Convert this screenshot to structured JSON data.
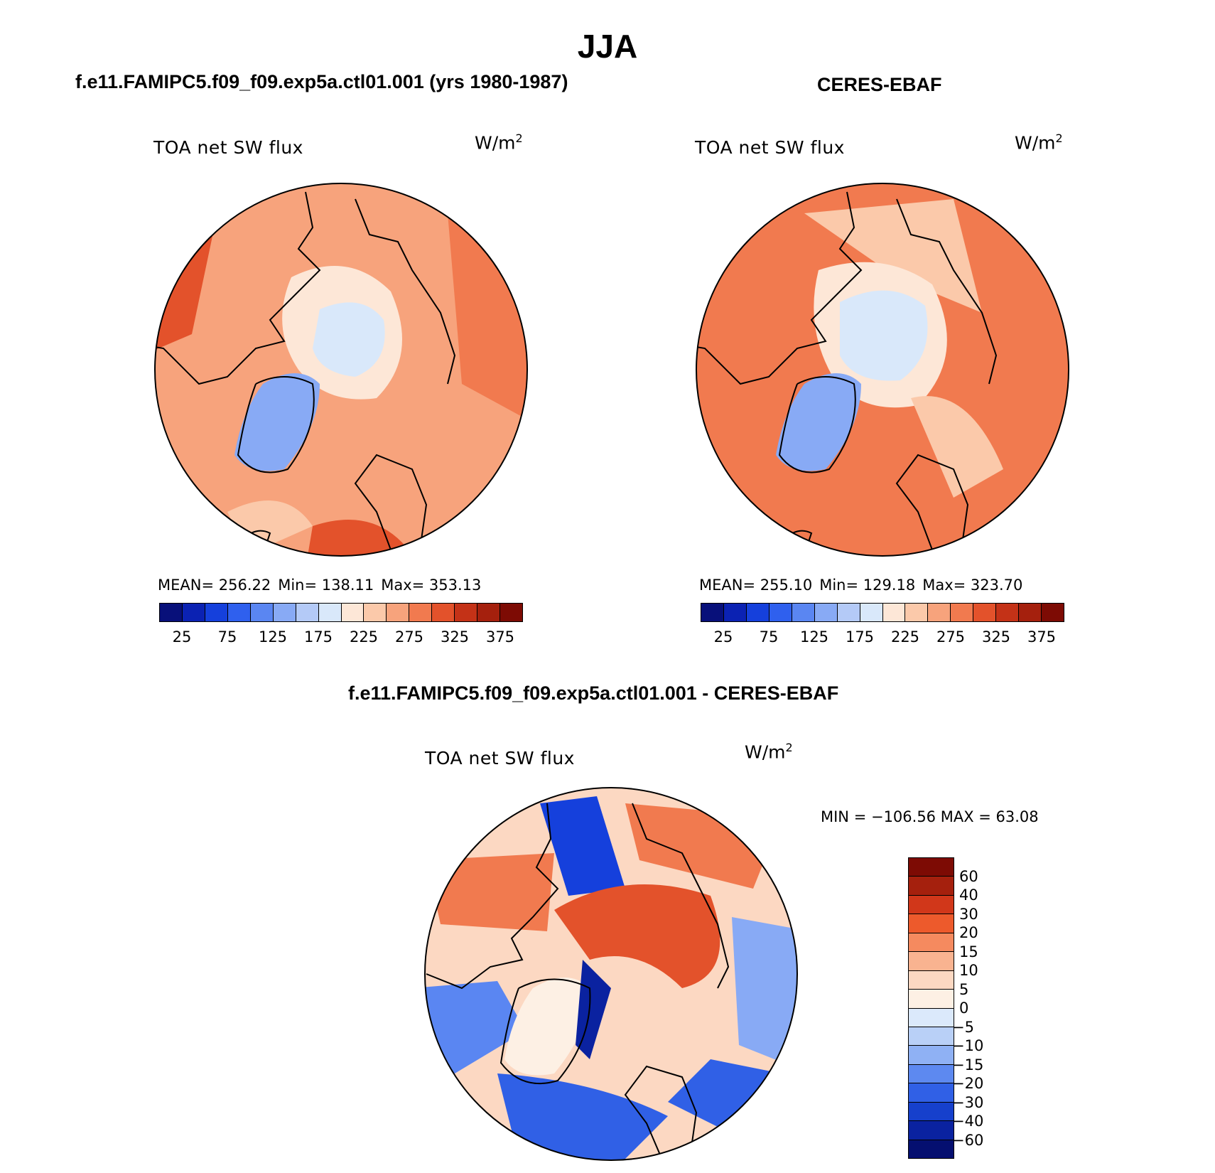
{
  "title": "JJA",
  "chart_data": [
    {
      "type": "heatmap",
      "projection": "north polar stereographic",
      "title": "f.e11.FAMIPC5.f09_f09.exp5a.ctl01.001 (yrs 1980-1987)",
      "variable": "TOA net SW flux",
      "units": "W/m",
      "units_exp": "2",
      "stats": {
        "mean": "MEAN= 256.22",
        "min": "Min= 138.11",
        "max": "Max= 353.13"
      },
      "levels": [
        25,
        50,
        75,
        100,
        125,
        150,
        175,
        200,
        225,
        250,
        275,
        300,
        325,
        350,
        375
      ],
      "tick_labels": [
        "25",
        "75",
        "125",
        "175",
        "225",
        "275",
        "325",
        "375"
      ]
    },
    {
      "type": "heatmap",
      "projection": "north polar stereographic",
      "title": "CERES-EBAF",
      "variable": "TOA net SW flux",
      "units": "W/m",
      "units_exp": "2",
      "stats": {
        "mean": "MEAN= 255.10",
        "min": "Min= 129.18",
        "max": "Max= 323.70"
      },
      "levels": [
        25,
        50,
        75,
        100,
        125,
        150,
        175,
        200,
        225,
        250,
        275,
        300,
        325,
        350,
        375
      ],
      "tick_labels": [
        "25",
        "75",
        "125",
        "175",
        "225",
        "275",
        "325",
        "375"
      ]
    },
    {
      "type": "heatmap",
      "projection": "north polar stereographic",
      "title": "f.e11.FAMIPC5.f09_f09.exp5a.ctl01.001 - CERES-EBAF",
      "variable": "TOA net SW flux",
      "units": "W/m",
      "units_exp": "2",
      "stats_text": "MIN = −106.56 MAX =   63.08",
      "levels": [
        -60,
        -40,
        -30,
        -20,
        -15,
        -10,
        -5,
        0,
        5,
        10,
        15,
        20,
        30,
        40,
        60
      ],
      "tick_labels": [
        "60",
        "40",
        "30",
        "20",
        "15",
        "10",
        "5",
        "0",
        "−5",
        "−10",
        "−15",
        "−20",
        "−30",
        "−40",
        "−60"
      ]
    }
  ],
  "colors": {
    "abs_scale": [
      "#08107a",
      "#0b22b3",
      "#1540dc",
      "#2f60ee",
      "#5a86f2",
      "#88aaf5",
      "#b4caf7",
      "#d9e8fa",
      "#fde7d7",
      "#fbc9aa",
      "#f7a37c",
      "#f17a4f",
      "#e3522b",
      "#c43217",
      "#a5200d",
      "#7d0b04"
    ],
    "diff_scale": [
      "#7d0b04",
      "#a5200d",
      "#d1371a",
      "#ed5a2c",
      "#f58a5f",
      "#f9b390",
      "#fcd8c2",
      "#fdf0e4",
      "#dbe9fb",
      "#b9d0f7",
      "#8fb1f4",
      "#5d89f0",
      "#3060e6",
      "#1640cc",
      "#0a22a0",
      "#050f70"
    ]
  }
}
